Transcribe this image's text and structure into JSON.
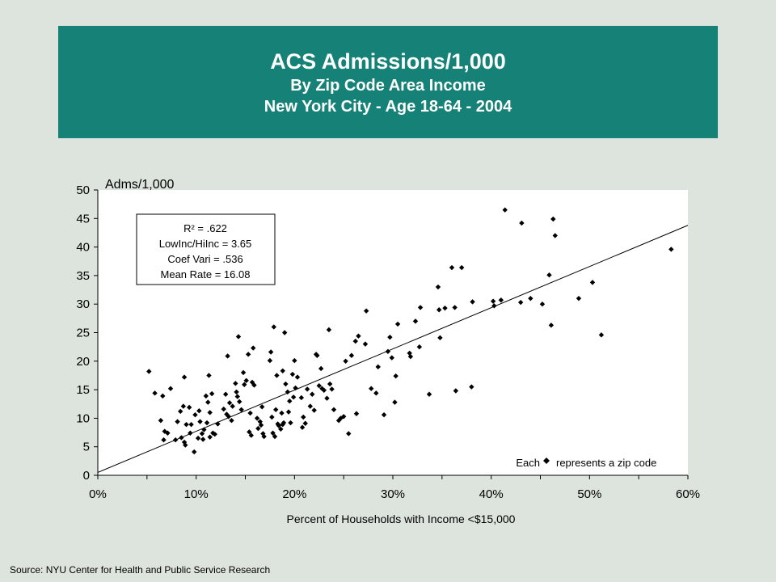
{
  "title": {
    "line1": "ACS Admissions/1,000",
    "line2": "By Zip Code Area Income",
    "line3": "New York City - Age 18-64 - 2004"
  },
  "source": "Source:  NYU Center for Health and Public Service Research",
  "colors": {
    "banner": "#168177",
    "background": "#dde4dd",
    "plot_area": "#ffffff"
  },
  "chart_data": {
    "type": "scatter",
    "ylabel": "Adms/1,000",
    "xlabel": "Percent of Households with Income <$15,000",
    "xlim": [
      0,
      0.6
    ],
    "ylim": [
      0,
      50
    ],
    "x_ticks": [
      "0%",
      "10%",
      "20%",
      "30%",
      "40%",
      "50%",
      "60%"
    ],
    "y_ticks": [
      "0",
      "5",
      "10",
      "15",
      "20",
      "25",
      "30",
      "35",
      "40",
      "45",
      "50"
    ],
    "stats": {
      "r2": "R² = .622",
      "ratio": "LowInc/HiInc = 3.65",
      "coef": "Coef Vari = .536",
      "mean": "Mean Rate = 16.08"
    },
    "note_before": "Each",
    "note_after": "represents a zip code",
    "trendline": {
      "x": [
        0,
        0.6
      ],
      "y": [
        0.5,
        43.8
      ]
    },
    "points": [
      [
        0.052,
        18.2
      ],
      [
        0.058,
        14.4
      ],
      [
        0.064,
        9.6
      ],
      [
        0.066,
        13.9
      ],
      [
        0.067,
        6.2
      ],
      [
        0.068,
        7.7
      ],
      [
        0.071,
        7.4
      ],
      [
        0.074,
        15.2
      ],
      [
        0.079,
        6.2
      ],
      [
        0.081,
        9.4
      ],
      [
        0.084,
        11.2
      ],
      [
        0.085,
        6.6
      ],
      [
        0.087,
        12.1
      ],
      [
        0.088,
        5.8
      ],
      [
        0.088,
        17.2
      ],
      [
        0.089,
        5.3
      ],
      [
        0.09,
        8.9
      ],
      [
        0.093,
        11.9
      ],
      [
        0.094,
        7.4
      ],
      [
        0.095,
        8.9
      ],
      [
        0.098,
        4.1
      ],
      [
        0.099,
        10.6
      ],
      [
        0.102,
        6.5
      ],
      [
        0.103,
        11.3
      ],
      [
        0.104,
        9.4
      ],
      [
        0.106,
        7.3
      ],
      [
        0.107,
        6.3
      ],
      [
        0.108,
        8.0
      ],
      [
        0.11,
        13.9
      ],
      [
        0.111,
        9.2
      ],
      [
        0.112,
        12.8
      ],
      [
        0.113,
        17.5
      ],
      [
        0.114,
        6.7
      ],
      [
        0.114,
        11.0
      ],
      [
        0.116,
        14.3
      ],
      [
        0.117,
        7.4
      ],
      [
        0.119,
        7.2
      ],
      [
        0.122,
        9.0
      ],
      [
        0.128,
        11.6
      ],
      [
        0.13,
        14.2
      ],
      [
        0.131,
        10.7
      ],
      [
        0.132,
        20.9
      ],
      [
        0.133,
        10.3
      ],
      [
        0.134,
        12.7
      ],
      [
        0.136,
        9.6
      ],
      [
        0.137,
        12.1
      ],
      [
        0.14,
        16.1
      ],
      [
        0.141,
        14.6
      ],
      [
        0.142,
        13.8
      ],
      [
        0.143,
        24.3
      ],
      [
        0.144,
        12.9
      ],
      [
        0.146,
        11.5
      ],
      [
        0.148,
        18.0
      ],
      [
        0.149,
        15.9
      ],
      [
        0.151,
        16.6
      ],
      [
        0.153,
        21.2
      ],
      [
        0.154,
        7.6
      ],
      [
        0.155,
        10.9
      ],
      [
        0.156,
        7.0
      ],
      [
        0.157,
        16.3
      ],
      [
        0.158,
        22.3
      ],
      [
        0.159,
        15.8
      ],
      [
        0.162,
        10.0
      ],
      [
        0.163,
        8.2
      ],
      [
        0.165,
        9.4
      ],
      [
        0.166,
        8.8
      ],
      [
        0.167,
        12.0
      ],
      [
        0.168,
        7.3
      ],
      [
        0.169,
        6.8
      ],
      [
        0.175,
        20.1
      ],
      [
        0.176,
        21.6
      ],
      [
        0.177,
        10.2
      ],
      [
        0.178,
        7.4
      ],
      [
        0.179,
        26.0
      ],
      [
        0.18,
        6.8
      ],
      [
        0.181,
        11.5
      ],
      [
        0.182,
        17.5
      ],
      [
        0.183,
        9.0
      ],
      [
        0.184,
        8.7
      ],
      [
        0.186,
        8.1
      ],
      [
        0.187,
        10.9
      ],
      [
        0.188,
        8.9
      ],
      [
        0.188,
        18.3
      ],
      [
        0.189,
        9.2
      ],
      [
        0.19,
        25.0
      ],
      [
        0.191,
        16.0
      ],
      [
        0.193,
        14.6
      ],
      [
        0.194,
        11.1
      ],
      [
        0.195,
        13.0
      ],
      [
        0.196,
        9.2
      ],
      [
        0.198,
        17.7
      ],
      [
        0.199,
        13.7
      ],
      [
        0.2,
        20.1
      ],
      [
        0.201,
        15.3
      ],
      [
        0.203,
        17.2
      ],
      [
        0.207,
        13.6
      ],
      [
        0.208,
        8.4
      ],
      [
        0.209,
        10.2
      ],
      [
        0.211,
        9.1
      ],
      [
        0.213,
        15.1
      ],
      [
        0.216,
        12.1
      ],
      [
        0.218,
        14.2
      ],
      [
        0.22,
        11.4
      ],
      [
        0.222,
        21.2
      ],
      [
        0.223,
        21.0
      ],
      [
        0.225,
        15.7
      ],
      [
        0.227,
        18.7
      ],
      [
        0.228,
        15.2
      ],
      [
        0.23,
        14.9
      ],
      [
        0.233,
        13.5
      ],
      [
        0.235,
        25.5
      ],
      [
        0.236,
        16.0
      ],
      [
        0.238,
        15.1
      ],
      [
        0.24,
        11.5
      ],
      [
        0.245,
        9.6
      ],
      [
        0.247,
        10.0
      ],
      [
        0.25,
        10.3
      ],
      [
        0.252,
        20.0
      ],
      [
        0.255,
        7.3
      ],
      [
        0.258,
        21.0
      ],
      [
        0.262,
        23.5
      ],
      [
        0.263,
        10.8
      ],
      [
        0.265,
        24.4
      ],
      [
        0.272,
        23.0
      ],
      [
        0.273,
        28.8
      ],
      [
        0.278,
        15.2
      ],
      [
        0.283,
        14.4
      ],
      [
        0.285,
        19.0
      ],
      [
        0.291,
        10.6
      ],
      [
        0.295,
        21.7
      ],
      [
        0.297,
        24.2
      ],
      [
        0.299,
        20.6
      ],
      [
        0.302,
        12.8
      ],
      [
        0.303,
        17.4
      ],
      [
        0.305,
        26.5
      ],
      [
        0.317,
        21.4
      ],
      [
        0.318,
        20.8
      ],
      [
        0.323,
        27.0
      ],
      [
        0.327,
        22.5
      ],
      [
        0.328,
        29.4
      ],
      [
        0.337,
        14.2
      ],
      [
        0.346,
        33.0
      ],
      [
        0.347,
        29.0
      ],
      [
        0.348,
        24.1
      ],
      [
        0.353,
        29.3
      ],
      [
        0.36,
        36.4
      ],
      [
        0.363,
        29.4
      ],
      [
        0.364,
        14.8
      ],
      [
        0.37,
        36.4
      ],
      [
        0.38,
        15.5
      ],
      [
        0.381,
        30.4
      ],
      [
        0.402,
        30.5
      ],
      [
        0.403,
        29.7
      ],
      [
        0.41,
        30.7
      ],
      [
        0.414,
        46.5
      ],
      [
        0.43,
        30.3
      ],
      [
        0.431,
        44.2
      ],
      [
        0.44,
        31.0
      ],
      [
        0.452,
        30.0
      ],
      [
        0.459,
        35.1
      ],
      [
        0.461,
        26.3
      ],
      [
        0.463,
        44.9
      ],
      [
        0.465,
        42.0
      ],
      [
        0.489,
        31.0
      ],
      [
        0.503,
        33.8
      ],
      [
        0.512,
        24.6
      ],
      [
        0.583,
        39.6
      ]
    ]
  }
}
